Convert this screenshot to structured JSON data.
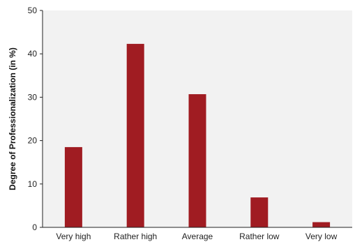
{
  "chart_data": {
    "type": "bar",
    "categories": [
      "Very high",
      "Rather high",
      "Average",
      "Rather low",
      "Very low"
    ],
    "values": [
      18.5,
      42.3,
      30.7,
      6.9,
      1.2
    ],
    "title": "",
    "xlabel": "",
    "ylabel": "Degree of Professionalization (in %)",
    "ylim": [
      0,
      50
    ],
    "yticks": [
      0,
      10,
      20,
      30,
      40,
      50
    ],
    "grid": false,
    "bar_color": "#a01c22",
    "background_color": "#f2f2f2"
  }
}
